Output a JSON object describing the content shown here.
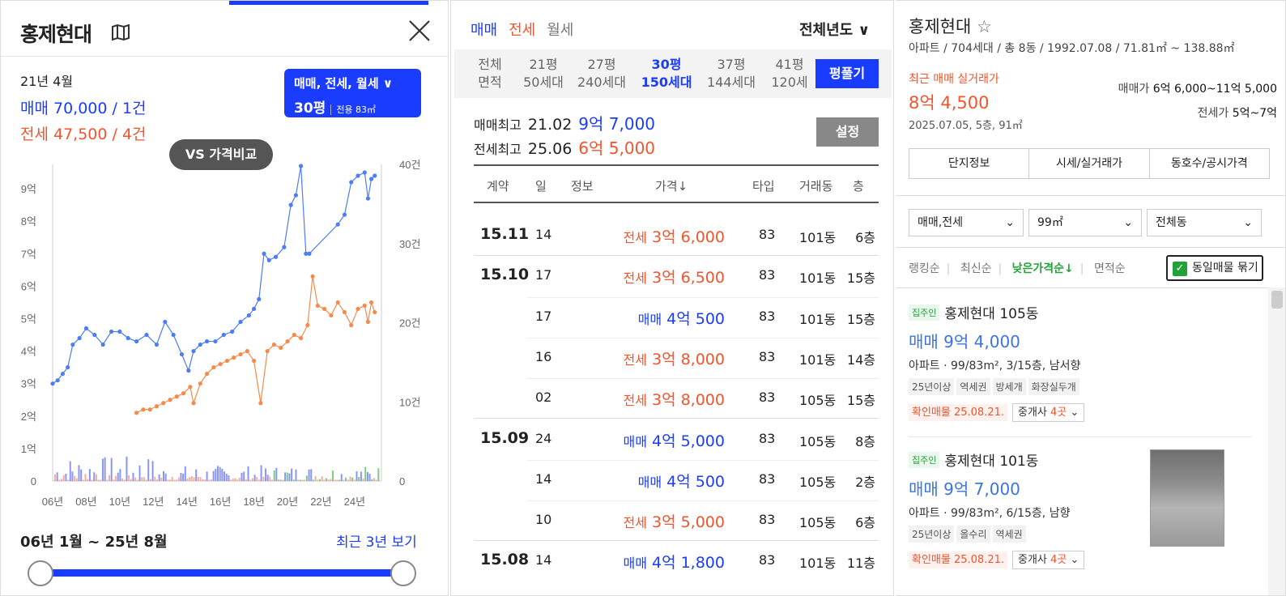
{
  "left": {
    "title": "홍제현대",
    "month": "21년 4월",
    "sale_summary": "매매 70,000 / 1건",
    "jeonse_summary": "전세 47,500 / 4건",
    "filter_types": "매매, 전세, 월세 ∨",
    "filter_size": "30평",
    "filter_area": "전용 83㎡",
    "vs_button": "VS 가격비교",
    "range_label": "06년 1월 ~ 25년 8월",
    "recent_link": "최근 3년 보기"
  },
  "chart_data": {
    "type": "line",
    "x_tick_labels": [
      "06년",
      "08년",
      "10년",
      "12년",
      "14년",
      "16년",
      "18년",
      "20년",
      "22년",
      "24년"
    ],
    "y_left_labels": [
      "0",
      "1억",
      "2억",
      "3억",
      "4억",
      "5억",
      "6억",
      "7억",
      "8억",
      "9억"
    ],
    "y_right_labels": [
      "0",
      "10건",
      "20건",
      "30건",
      "40건"
    ],
    "y_left_range": [
      0,
      9.5
    ],
    "y_right_range": [
      0,
      40
    ],
    "series": [
      {
        "name": "매매",
        "color": "#4d7cf5",
        "x": [
          2006.0,
          2006.3,
          2006.6,
          2006.9,
          2007.2,
          2007.6,
          2008.0,
          2008.5,
          2009.0,
          2009.5,
          2010.0,
          2010.5,
          2011.0,
          2011.6,
          2012.2,
          2012.7,
          2013.2,
          2013.7,
          2014.1,
          2014.4,
          2014.8,
          2015.2,
          2015.7,
          2016.2,
          2016.7,
          2017.2,
          2017.7,
          2018.0,
          2018.3,
          2018.6,
          2018.9,
          2019.3,
          2019.8,
          2020.2,
          2020.5,
          2020.8,
          2021.1,
          2021.3,
          2023.0,
          2023.4,
          2023.8,
          2024.2,
          2024.6,
          2024.8,
          2025.0,
          2025.2
        ],
        "y": [
          3.0,
          3.1,
          3.3,
          3.5,
          4.2,
          4.4,
          4.7,
          4.5,
          4.2,
          4.6,
          4.6,
          4.4,
          4.3,
          4.5,
          4.2,
          4.9,
          4.5,
          3.9,
          3.4,
          4.0,
          4.2,
          4.3,
          4.3,
          4.5,
          4.6,
          4.9,
          5.1,
          5.3,
          5.6,
          7.0,
          6.8,
          6.9,
          7.2,
          8.5,
          8.8,
          9.7,
          7.0,
          7.0,
          7.9,
          8.2,
          9.2,
          9.4,
          9.5,
          8.7,
          9.3,
          9.4
        ]
      },
      {
        "name": "전세",
        "color": "#f58a4d",
        "x": [
          2011.0,
          2011.4,
          2011.8,
          2012.2,
          2012.6,
          2013.0,
          2013.4,
          2013.8,
          2014.2,
          2014.4,
          2014.8,
          2015.2,
          2015.6,
          2016.0,
          2016.4,
          2016.8,
          2017.2,
          2017.6,
          2018.0,
          2018.4,
          2018.8,
          2019.2,
          2019.6,
          2020.0,
          2020.4,
          2020.8,
          2021.2,
          2021.5,
          2021.8,
          2022.2,
          2022.6,
          2023.0,
          2023.4,
          2023.8,
          2024.2,
          2024.6,
          2024.8,
          2025.0,
          2025.2
        ],
        "y": [
          2.1,
          2.2,
          2.2,
          2.3,
          2.4,
          2.5,
          2.6,
          2.7,
          2.9,
          2.4,
          3.0,
          3.3,
          3.5,
          3.6,
          3.7,
          3.8,
          3.9,
          4.0,
          3.7,
          2.4,
          4.0,
          4.2,
          4.1,
          4.3,
          4.5,
          4.4,
          4.8,
          6.3,
          5.4,
          5.3,
          5.1,
          5.5,
          5.2,
          4.8,
          5.3,
          5.4,
          4.9,
          5.5,
          5.2
        ]
      }
    ]
  },
  "middle": {
    "tab_sale": "매매",
    "tab_jeonse": "전세",
    "tab_wolse": "월세",
    "year_select": "전체년도 ∨",
    "sizes": [
      {
        "label": "전체",
        "sub": "면적"
      },
      {
        "label": "21평",
        "sub": "50세대"
      },
      {
        "label": "27평",
        "sub": "240세대"
      },
      {
        "label": "30평",
        "sub": "150세대"
      },
      {
        "label": "37평",
        "sub": "144세대"
      },
      {
        "label": "41평",
        "sub": "120세"
      }
    ],
    "pyeong_button": "평풀기",
    "max_sale_label": "매매최고",
    "max_sale_date": "21.02",
    "max_sale_value": "9억 7,000",
    "max_jeonse_label": "전세최고",
    "max_jeonse_date": "25.06",
    "max_jeonse_value": "6억 5,000",
    "settings_button": "설정",
    "headers": [
      "계약",
      "일",
      "정보",
      "가격↓",
      "타입",
      "거래동",
      "층"
    ],
    "rows": [
      {
        "month": "15.11",
        "day": "14",
        "type": "전세",
        "price": "3억 6,000",
        "area": "83",
        "dong": "101동",
        "floor": "6층"
      },
      {
        "month": "15.10",
        "day": "17",
        "type": "전세",
        "price": "3억 6,500",
        "area": "83",
        "dong": "101동",
        "floor": "15층"
      },
      {
        "month": "",
        "day": "17",
        "type": "매매",
        "price": "4억 500",
        "area": "83",
        "dong": "101동",
        "floor": "15층"
      },
      {
        "month": "",
        "day": "16",
        "type": "전세",
        "price": "3억 8,000",
        "area": "83",
        "dong": "101동",
        "floor": "14층"
      },
      {
        "month": "",
        "day": "02",
        "type": "전세",
        "price": "3억 8,000",
        "area": "83",
        "dong": "105동",
        "floor": "15층"
      },
      {
        "month": "15.09",
        "day": "24",
        "type": "매매",
        "price": "4억 5,000",
        "area": "83",
        "dong": "105동",
        "floor": "8층"
      },
      {
        "month": "",
        "day": "14",
        "type": "매매",
        "price": "4억 500",
        "area": "83",
        "dong": "105동",
        "floor": "2층"
      },
      {
        "month": "",
        "day": "10",
        "type": "전세",
        "price": "3억 5,000",
        "area": "83",
        "dong": "105동",
        "floor": "6층"
      },
      {
        "month": "15.08",
        "day": "14",
        "type": "매매",
        "price": "4억 1,800",
        "area": "83",
        "dong": "101동",
        "floor": "11층"
      }
    ]
  },
  "right": {
    "name": "홍제현대",
    "star": "☆",
    "info": "아파트 / 704세대 / 총 8동 / 1992.07.08 / 71.81㎡ ~ 138.88㎡",
    "recent_label": "최근 매매 실거래가",
    "recent_price": "8억 4,500",
    "recent_detail": "2025.07.05, 5층, 91㎡",
    "sale_price_label": "매매가",
    "sale_price_value": "6억 6,000~11억 5,000",
    "jeonse_price_label": "전세가",
    "jeonse_price_value": "5억~7억",
    "tabs": [
      "단지정보",
      "시세/실거래가",
      "동호수/공시가격"
    ],
    "filter1": "매매,전세",
    "filter2": "99㎡",
    "filter3": "전체동",
    "sort_rank": "랭킹순",
    "sort_recent": "최신순",
    "sort_low": "낮은가격순↓",
    "sort_area": "면적순",
    "dup_label": "동일매물 묶기",
    "cards": [
      {
        "agent": "집주인",
        "name": "홍제현대 105동",
        "price": "매매 9억 4,000",
        "detail": "아파트 · 99/83m², 3/15층, 남서향",
        "tags": [
          "25년이상",
          "역세권",
          "방세개",
          "화장실두개"
        ],
        "confirm": "확인매물 25.08.21.",
        "brokers": "중개사",
        "brokers_count": "4곳"
      },
      {
        "agent": "집주인",
        "name": "홍제현대 101동",
        "price": "매매 9억 7,000",
        "detail": "아파트 · 99/83m², 6/15층, 남향",
        "tags": [
          "25년이상",
          "올수리",
          "역세권"
        ],
        "confirm": "확인매물 25.08.21.",
        "brokers": "중개사",
        "brokers_count": "4곳"
      }
    ]
  }
}
